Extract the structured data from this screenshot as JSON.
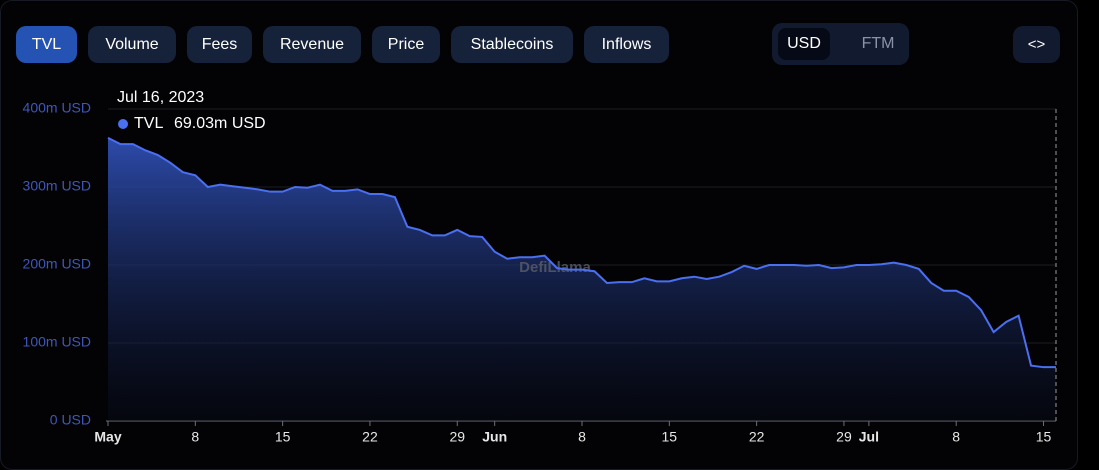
{
  "tabs": [
    "TVL",
    "Volume",
    "Fees",
    "Revenue",
    "Price",
    "Stablecoins",
    "Inflows"
  ],
  "currency": [
    "USD",
    "FTM"
  ],
  "watermark": "DefiLlama",
  "tooltip": {
    "date": "Jul 16, 2023",
    "value_label": "69.03m USD"
  },
  "chart_data": {
    "type": "area",
    "categories": [
      "May",
      null,
      null,
      null,
      null,
      null,
      null,
      "8",
      null,
      null,
      null,
      null,
      null,
      null,
      "15",
      null,
      null,
      null,
      null,
      null,
      null,
      "22",
      null,
      null,
      null,
      null,
      null,
      null,
      "29",
      null,
      null,
      "Jun",
      null,
      null,
      null,
      null,
      null,
      null,
      "8",
      null,
      null,
      null,
      null,
      null,
      null,
      "15",
      null,
      null,
      null,
      null,
      null,
      null,
      "22",
      null,
      null,
      null,
      null,
      null,
      null,
      "29",
      null,
      "Jul",
      null,
      null,
      null,
      null,
      null,
      null,
      "8",
      null,
      null,
      null,
      null,
      null,
      null,
      "15",
      null
    ],
    "series": [
      {
        "name": "TVL",
        "color": "#4a6ff0",
        "values": [
          363,
          355,
          355,
          347,
          341,
          331,
          319,
          315,
          300,
          303,
          301,
          299,
          297,
          294,
          294,
          300,
          299,
          303,
          295,
          295,
          297,
          291,
          291,
          287,
          249,
          245,
          238,
          238,
          245,
          237,
          236,
          217,
          208,
          210,
          210,
          212,
          196,
          194,
          194,
          192,
          177,
          178,
          178,
          183,
          179,
          179,
          183,
          185,
          182,
          185,
          191,
          199,
          195,
          200,
          200,
          200,
          199,
          200,
          196,
          197,
          200,
          200,
          201,
          203,
          200,
          195,
          177,
          167,
          167,
          159,
          142,
          114,
          127,
          135,
          71,
          69,
          69.03
        ]
      }
    ],
    "ylim": [
      0,
      400
    ],
    "yticks": [
      {
        "value": 0,
        "label": "0 USD"
      },
      {
        "value": 100,
        "label": "100m USD"
      },
      {
        "value": 200,
        "label": "200m USD"
      },
      {
        "value": 300,
        "label": "300m USD"
      },
      {
        "value": 400,
        "label": "400m USD"
      }
    ],
    "grid": true
  }
}
